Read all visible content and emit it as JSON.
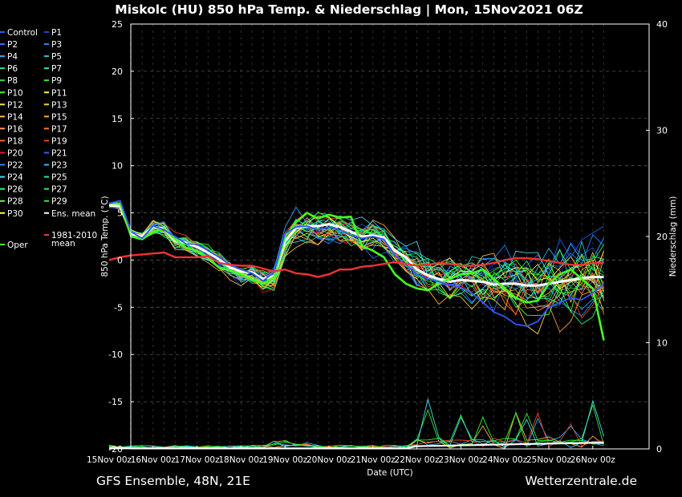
{
  "chart_data": {
    "type": "line",
    "title": "Miskolc  (HU)  850 hPa Temp. & Niederschlag | Mon, 15Nov2021 06Z",
    "xlabel": "Date (UTC)",
    "ylabel": "850 hPa Temp. (°C)",
    "y2label": "Niederschlag (mm)",
    "ylim": [
      -20,
      25
    ],
    "y2lim": [
      0,
      40
    ],
    "yticks": [
      -20,
      -15,
      -10,
      -5,
      0,
      5,
      10,
      15,
      20,
      25
    ],
    "y2ticks": [
      0,
      10,
      20,
      30,
      40
    ],
    "x_ticks": [
      "15Nov 00z",
      "16Nov 00z",
      "17Nov 00z",
      "18Nov 00z",
      "19Nov 00z",
      "20Nov 00z",
      "21Nov 00z",
      "22Nov 00z",
      "23Nov 00z",
      "24Nov 00z",
      "25Nov 00z",
      "26Nov 00z"
    ],
    "x_unit": "days since 15Nov 00z",
    "xlim": [
      0,
      11.3
    ],
    "footer_left": "GFS Ensemble, 48N, 21E",
    "footer_right": "Wetterzentrale.de",
    "legend": [
      {
        "name": "Control",
        "color": "#3355ff"
      },
      {
        "name": "P1",
        "color": "#2244dd"
      },
      {
        "name": "P2",
        "color": "#2f6fff"
      },
      {
        "name": "P3",
        "color": "#1f8fff"
      },
      {
        "name": "P4",
        "color": "#33aaff"
      },
      {
        "name": "P5",
        "color": "#22cccc"
      },
      {
        "name": "P6",
        "color": "#22ddaa"
      },
      {
        "name": "P7",
        "color": "#22ee88"
      },
      {
        "name": "P8",
        "color": "#33dd55"
      },
      {
        "name": "P9",
        "color": "#33ee33"
      },
      {
        "name": "P10",
        "color": "#44ff22"
      },
      {
        "name": "P11",
        "color": "#ffff33"
      },
      {
        "name": "P12",
        "color": "#ffdd55"
      },
      {
        "name": "P13",
        "color": "#ffcc33"
      },
      {
        "name": "P14",
        "color": "#ffbb44"
      },
      {
        "name": "P15",
        "color": "#ffaa22"
      },
      {
        "name": "P16",
        "color": "#ff9955"
      },
      {
        "name": "P17",
        "color": "#ff7733"
      },
      {
        "name": "P18",
        "color": "#ff6622"
      },
      {
        "name": "P19",
        "color": "#ee4422"
      },
      {
        "name": "P20",
        "color": "#dd2222"
      },
      {
        "name": "P21",
        "color": "#2266ff"
      },
      {
        "name": "P22",
        "color": "#2288ff"
      },
      {
        "name": "P23",
        "color": "#22bbff"
      },
      {
        "name": "P24",
        "color": "#44ddee"
      },
      {
        "name": "P25",
        "color": "#22ee99"
      },
      {
        "name": "P26",
        "color": "#22ff77"
      },
      {
        "name": "P27",
        "color": "#33ee55"
      },
      {
        "name": "P28",
        "color": "#55ff44"
      },
      {
        "name": "P29",
        "color": "#22ff22"
      },
      {
        "name": "P30",
        "color": "#ffff44"
      },
      {
        "name": "Ens. mean",
        "color": "#ffffff"
      },
      {
        "name": "Oper",
        "color": "#44ff22"
      },
      {
        "name": "1981-2010 mean",
        "color": "#ee3333"
      }
    ],
    "series": [
      {
        "name": "Ens. mean",
        "color": "#ffffff",
        "x": [
          0,
          0.25,
          0.5,
          0.75,
          1,
          1.25,
          1.5,
          1.75,
          2,
          2.25,
          2.5,
          2.75,
          3,
          3.25,
          3.5,
          3.75,
          4,
          4.25,
          4.5,
          4.75,
          5,
          5.25,
          5.5,
          5.75,
          6,
          6.25,
          6.5,
          6.75,
          7,
          7.25,
          7.5,
          7.75,
          8,
          8.25,
          8.5,
          8.75,
          9,
          9.25,
          9.5,
          9.75,
          10,
          10.25,
          10.5,
          10.75,
          11,
          11.25
        ],
        "values": [
          5.8,
          5.7,
          2.8,
          2.5,
          3.5,
          3.3,
          2.0,
          1.8,
          1.4,
          0.8,
          0.1,
          -0.8,
          -1.2,
          -1.3,
          -2.0,
          -1.7,
          2.0,
          3.4,
          3.6,
          3.6,
          3.8,
          3.5,
          3.0,
          2.5,
          2.6,
          2.4,
          1.0,
          0.3,
          -1.0,
          -1.6,
          -2.0,
          -2.3,
          -2.1,
          -2.2,
          -2.3,
          -2.6,
          -2.5,
          -2.5,
          -2.7,
          -2.7,
          -2.5,
          -2.3,
          -2.1,
          -1.9,
          -1.8,
          -1.8
        ]
      },
      {
        "name": "Oper",
        "color": "#44ff22",
        "x": [
          0,
          0.25,
          0.5,
          0.75,
          1,
          1.25,
          1.5,
          1.75,
          2,
          2.25,
          2.5,
          2.75,
          3,
          3.25,
          3.5,
          3.75,
          4,
          4.25,
          4.5,
          4.75,
          5,
          5.25,
          5.5,
          5.75,
          6,
          6.25,
          6.5,
          6.75,
          7,
          7.25,
          7.5,
          7.75,
          8,
          8.25,
          8.5,
          8.75,
          9,
          9.25,
          9.5,
          9.75,
          10,
          10.25,
          10.5,
          10.75,
          11,
          11.25
        ],
        "values": [
          6.0,
          6.0,
          2.5,
          2.2,
          3.0,
          3.3,
          2.2,
          1.3,
          1.0,
          0.2,
          -0.8,
          -1.1,
          -1.5,
          -2.1,
          -2.5,
          -1.8,
          2.5,
          4.0,
          5.0,
          4.4,
          4.8,
          4.5,
          4.6,
          1.5,
          1.0,
          0.3,
          -1.5,
          -2.5,
          -3.0,
          -3.2,
          -2.5,
          -2.0,
          -1.5,
          -1.4,
          -1.0,
          -2.0,
          -3.0,
          -4.0,
          -4.5,
          -4.3,
          -2.5,
          -1.5,
          -1.0,
          -2.0,
          -3.0,
          -8.5
        ]
      },
      {
        "name": "Control",
        "color": "#3355ff",
        "x": [
          0,
          0.25,
          0.5,
          0.75,
          1,
          1.25,
          1.5,
          1.75,
          2,
          2.25,
          2.5,
          2.75,
          3,
          3.25,
          3.5,
          3.75,
          4,
          4.25,
          4.5,
          4.75,
          5,
          5.25,
          5.5,
          5.75,
          6,
          6.25,
          6.5,
          6.75,
          7,
          7.25,
          7.5,
          7.75,
          8,
          8.25,
          8.5,
          8.75,
          9,
          9.25,
          9.5,
          9.75,
          10,
          10.25,
          10.5,
          10.75,
          11,
          11.25
        ],
        "values": [
          6.0,
          6.3,
          3.0,
          2.3,
          3.6,
          3.2,
          2.5,
          1.7,
          1.7,
          1.0,
          0.3,
          -0.5,
          -1.0,
          -1.4,
          -2.2,
          -1.3,
          2.8,
          3.5,
          3.6,
          3.2,
          3.5,
          3.2,
          2.6,
          2.3,
          2.5,
          2.2,
          0.5,
          -0.5,
          -1.5,
          -2.0,
          -2.3,
          -2.6,
          -2.9,
          -3.5,
          -4.5,
          -5.5,
          -6.0,
          -6.8,
          -7.0,
          -6.5,
          -5.0,
          -4.5,
          -4.0,
          -4.2,
          -3.5,
          -2.5
        ]
      },
      {
        "name": "1981-2010 mean",
        "color": "#ee3333",
        "x": [
          0,
          0.25,
          0.5,
          0.75,
          1,
          1.25,
          1.5,
          1.75,
          2,
          2.25,
          2.5,
          2.75,
          3,
          3.25,
          3.5,
          3.75,
          4,
          4.25,
          4.5,
          4.75,
          5,
          5.25,
          5.5,
          5.75,
          6,
          6.25,
          6.5,
          6.75,
          7,
          7.25,
          7.5,
          7.75,
          8,
          8.25,
          8.5,
          8.75,
          9,
          9.25,
          9.5,
          9.75,
          10,
          10.25,
          10.5,
          10.75,
          11,
          11.25
        ],
        "values": [
          0.0,
          0.3,
          0.5,
          0.6,
          0.7,
          0.8,
          0.3,
          0.3,
          0.3,
          0.4,
          -0.3,
          -0.5,
          -0.6,
          -0.6,
          -0.9,
          -1.2,
          -1.0,
          -1.4,
          -1.5,
          -1.8,
          -1.5,
          -1.0,
          -1.0,
          -0.7,
          -0.6,
          -0.4,
          -0.2,
          -0.4,
          -0.6,
          -0.5,
          -0.3,
          -0.4,
          -0.6,
          -0.6,
          -0.5,
          -0.3,
          0.0,
          0.2,
          0.2,
          0.1,
          -0.1,
          -0.3,
          -0.5,
          -0.5,
          -0.3,
          -0.3
        ]
      }
    ],
    "precip_peaks_mm": [
      {
        "x": 7.25,
        "value": 5.0
      },
      {
        "x": 8.0,
        "value": 4.2
      },
      {
        "x": 8.5,
        "value": 3.0
      },
      {
        "x": 9.25,
        "value": 4.0
      },
      {
        "x": 9.5,
        "value": 3.5
      },
      {
        "x": 9.75,
        "value": 4.0
      },
      {
        "x": 10.5,
        "value": 2.5
      },
      {
        "x": 11.0,
        "value": 4.6
      }
    ]
  }
}
